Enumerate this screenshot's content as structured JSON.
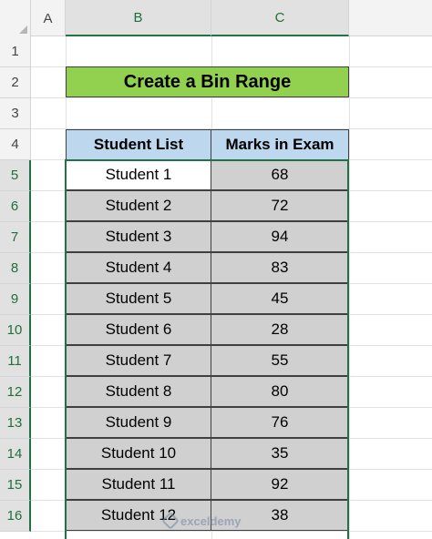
{
  "columns": [
    "A",
    "B",
    "C"
  ],
  "rows": [
    "1",
    "2",
    "3",
    "4",
    "5",
    "6",
    "7",
    "8",
    "9",
    "10",
    "11",
    "12",
    "13",
    "14",
    "15",
    "16"
  ],
  "title": "Create a Bin Range",
  "table": {
    "headers": [
      "Student List",
      "Marks in Exam"
    ],
    "rows": [
      {
        "student": "Student 1",
        "marks": "68"
      },
      {
        "student": "Student 2",
        "marks": "72"
      },
      {
        "student": "Student 3",
        "marks": "94"
      },
      {
        "student": "Student 4",
        "marks": "83"
      },
      {
        "student": "Student 5",
        "marks": "45"
      },
      {
        "student": "Student 6",
        "marks": "28"
      },
      {
        "student": "Student 7",
        "marks": "55"
      },
      {
        "student": "Student 8",
        "marks": "80"
      },
      {
        "student": "Student 9",
        "marks": "76"
      },
      {
        "student": "Student 10",
        "marks": "35"
      },
      {
        "student": "Student 11",
        "marks": "92"
      },
      {
        "student": "Student 12",
        "marks": "38"
      }
    ]
  },
  "watermark": "exceldemy",
  "colors": {
    "title_fill": "#92d050",
    "header_fill": "#bdd7ee",
    "selection": "#217346",
    "selected_fill": "#d0d0d0"
  }
}
